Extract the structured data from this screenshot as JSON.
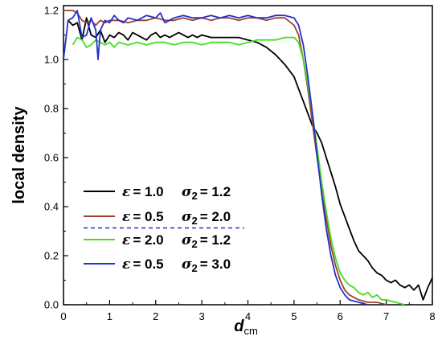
{
  "chart_data": {
    "type": "line",
    "xlabel": "d",
    "xlabel_sub": "cm",
    "ylabel": "local density",
    "xlim": [
      0,
      8
    ],
    "ylim": [
      0,
      1.22
    ],
    "xticks": [
      "0",
      "1",
      "2",
      "3",
      "4",
      "5",
      "6",
      "7",
      "8"
    ],
    "yticks": [
      "0.0",
      "0.2",
      "0.4",
      "0.6",
      "0.8",
      "1.0",
      "1.2"
    ],
    "grid": false,
    "legend_position": "left-lower",
    "series": [
      {
        "legend": {
          "eps_symbol": "ε",
          "eps_value": "= 1.0",
          "sigma_symbol": "σ",
          "sigma_sub": "2",
          "sigma_value": "= 1.2"
        },
        "color": "#000000",
        "x": [
          0.1,
          0.2,
          0.3,
          0.4,
          0.5,
          0.6,
          0.7,
          0.8,
          0.9,
          1.0,
          1.1,
          1.2,
          1.3,
          1.4,
          1.5,
          1.6,
          1.7,
          1.8,
          1.9,
          2.0,
          2.1,
          2.2,
          2.3,
          2.4,
          2.5,
          2.6,
          2.7,
          2.8,
          2.9,
          3.0,
          3.2,
          3.4,
          3.6,
          3.8,
          4.0,
          4.2,
          4.4,
          4.6,
          4.8,
          5.0,
          5.1,
          5.2,
          5.3,
          5.4,
          5.5,
          5.6,
          5.7,
          5.8,
          5.9,
          6.0,
          6.1,
          6.2,
          6.3,
          6.4,
          6.5,
          6.6,
          6.7,
          6.8,
          6.9,
          7.0,
          7.1,
          7.2,
          7.3,
          7.4,
          7.5,
          7.6,
          7.7,
          7.8,
          7.9,
          8.0
        ],
        "y": [
          1.16,
          1.14,
          1.15,
          1.08,
          1.17,
          1.1,
          1.09,
          1.12,
          1.07,
          1.1,
          1.09,
          1.11,
          1.1,
          1.08,
          1.11,
          1.1,
          1.09,
          1.08,
          1.1,
          1.11,
          1.09,
          1.1,
          1.09,
          1.1,
          1.11,
          1.1,
          1.09,
          1.1,
          1.09,
          1.1,
          1.09,
          1.09,
          1.09,
          1.09,
          1.08,
          1.07,
          1.05,
          1.02,
          0.98,
          0.93,
          0.88,
          0.83,
          0.78,
          0.73,
          0.7,
          0.66,
          0.6,
          0.54,
          0.48,
          0.41,
          0.36,
          0.31,
          0.26,
          0.22,
          0.2,
          0.18,
          0.15,
          0.13,
          0.12,
          0.1,
          0.09,
          0.1,
          0.08,
          0.07,
          0.08,
          0.06,
          0.08,
          0.02,
          0.07,
          0.11
        ]
      },
      {
        "legend": {
          "eps_symbol": "ε",
          "eps_value": "= 0.5",
          "sigma_symbol": "σ",
          "sigma_sub": "2",
          "sigma_value": "= 2.0"
        },
        "color": "#a0422c",
        "x": [
          0.0,
          0.1,
          0.2,
          0.3,
          0.4,
          0.5,
          0.6,
          0.7,
          0.8,
          0.9,
          1.0,
          1.2,
          1.4,
          1.6,
          1.8,
          2.0,
          2.2,
          2.4,
          2.6,
          2.8,
          3.0,
          3.2,
          3.4,
          3.6,
          3.8,
          4.0,
          4.2,
          4.4,
          4.6,
          4.8,
          5.0,
          5.1,
          5.2,
          5.3,
          5.4,
          5.5,
          5.6,
          5.7,
          5.8,
          5.9,
          6.0,
          6.1,
          6.2,
          6.4,
          6.6,
          6.8,
          7.0
        ],
        "y": [
          1.2,
          1.2,
          1.2,
          1.19,
          1.16,
          1.15,
          1.16,
          1.14,
          1.16,
          1.15,
          1.16,
          1.16,
          1.15,
          1.16,
          1.16,
          1.17,
          1.16,
          1.16,
          1.17,
          1.16,
          1.17,
          1.16,
          1.17,
          1.17,
          1.16,
          1.17,
          1.17,
          1.16,
          1.17,
          1.17,
          1.14,
          1.1,
          1.0,
          0.88,
          0.74,
          0.6,
          0.47,
          0.35,
          0.24,
          0.16,
          0.1,
          0.06,
          0.04,
          0.02,
          0.01,
          0.01,
          0.0
        ]
      },
      {
        "legend": {
          "eps_symbol": "ε",
          "eps_value": "= 2.0",
          "sigma_symbol": "σ",
          "sigma_sub": "2",
          "sigma_value": "= 1.2"
        },
        "color": "#44dd22",
        "x": [
          0.2,
          0.3,
          0.4,
          0.5,
          0.6,
          0.7,
          0.8,
          0.9,
          1.0,
          1.1,
          1.2,
          1.4,
          1.6,
          1.8,
          2.0,
          2.2,
          2.4,
          2.6,
          2.8,
          3.0,
          3.2,
          3.4,
          3.6,
          3.8,
          4.0,
          4.2,
          4.4,
          4.6,
          4.8,
          5.0,
          5.1,
          5.2,
          5.3,
          5.4,
          5.5,
          5.6,
          5.7,
          5.8,
          5.9,
          6.0,
          6.1,
          6.2,
          6.3,
          6.4,
          6.5,
          6.6,
          6.7,
          6.8,
          6.9,
          7.0,
          7.2,
          7.4
        ],
        "y": [
          1.06,
          1.09,
          1.08,
          1.05,
          1.06,
          1.08,
          1.07,
          1.06,
          1.07,
          1.05,
          1.07,
          1.06,
          1.07,
          1.06,
          1.07,
          1.07,
          1.06,
          1.07,
          1.07,
          1.06,
          1.07,
          1.07,
          1.07,
          1.06,
          1.07,
          1.08,
          1.08,
          1.08,
          1.09,
          1.09,
          1.07,
          1.0,
          0.9,
          0.78,
          0.64,
          0.5,
          0.38,
          0.27,
          0.19,
          0.13,
          0.1,
          0.08,
          0.07,
          0.05,
          0.04,
          0.05,
          0.03,
          0.04,
          0.02,
          0.02,
          0.01,
          0.0
        ]
      },
      {
        "legend": {
          "eps_symbol": "ε",
          "eps_value": "= 0.5",
          "sigma_symbol": "σ",
          "sigma_sub": "2",
          "sigma_value": "= 3.0"
        },
        "color": "#2233cc",
        "x": [
          0.0,
          0.1,
          0.2,
          0.3,
          0.4,
          0.5,
          0.6,
          0.7,
          0.75,
          0.8,
          0.9,
          1.0,
          1.1,
          1.2,
          1.3,
          1.4,
          1.6,
          1.8,
          2.0,
          2.1,
          2.2,
          2.4,
          2.6,
          2.8,
          3.0,
          3.2,
          3.4,
          3.6,
          3.8,
          4.0,
          4.2,
          4.4,
          4.6,
          4.8,
          5.0,
          5.1,
          5.2,
          5.3,
          5.4,
          5.5,
          5.6,
          5.7,
          5.8,
          5.9,
          6.0,
          6.1,
          6.2,
          6.4,
          6.6
        ],
        "y": [
          1.0,
          1.16,
          1.17,
          1.2,
          1.09,
          1.1,
          1.17,
          1.12,
          1.0,
          1.12,
          1.16,
          1.15,
          1.18,
          1.16,
          1.15,
          1.17,
          1.16,
          1.18,
          1.17,
          1.19,
          1.15,
          1.17,
          1.18,
          1.17,
          1.17,
          1.18,
          1.17,
          1.18,
          1.17,
          1.18,
          1.17,
          1.17,
          1.18,
          1.18,
          1.17,
          1.14,
          1.06,
          0.93,
          0.78,
          0.61,
          0.45,
          0.31,
          0.2,
          0.12,
          0.07,
          0.04,
          0.02,
          0.01,
          0.0
        ]
      }
    ]
  }
}
